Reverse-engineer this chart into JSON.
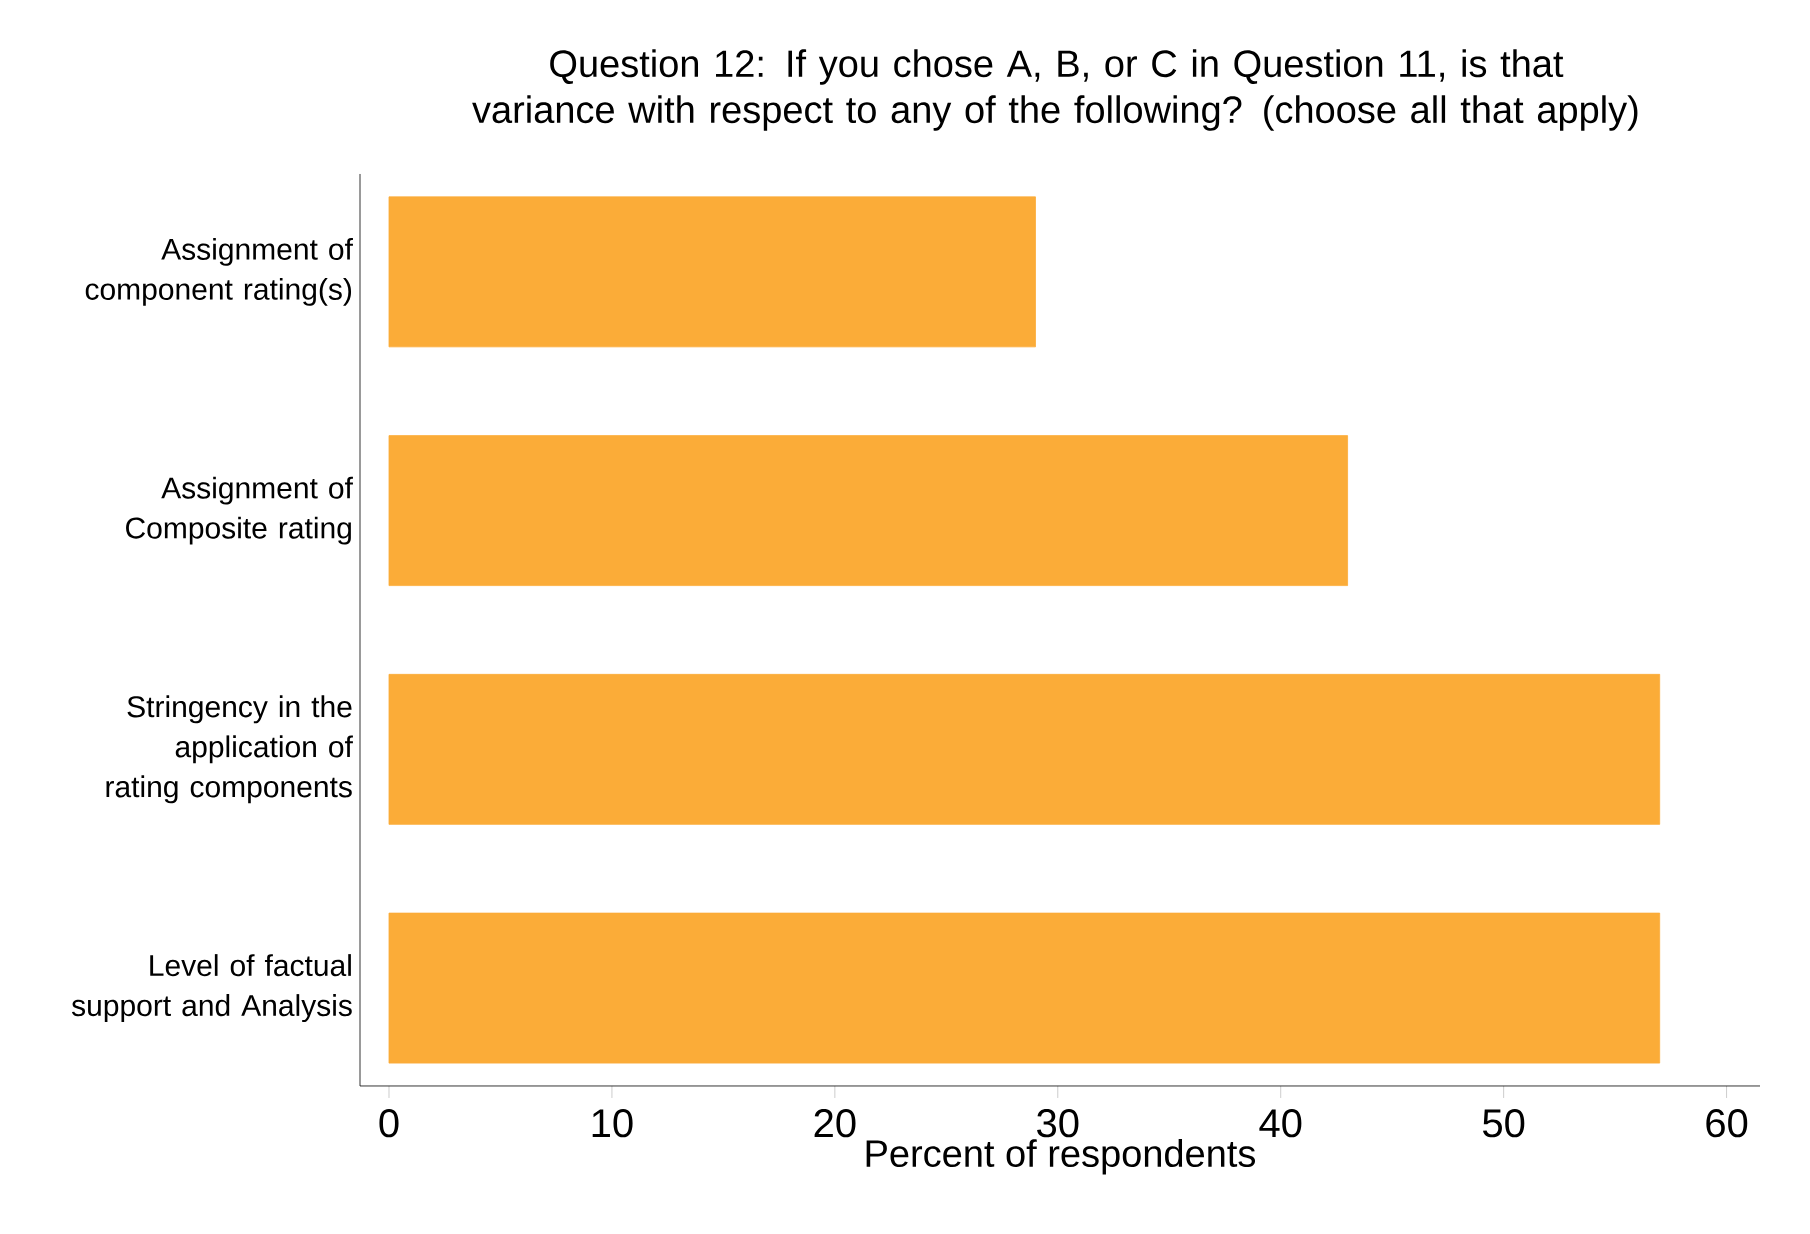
{
  "chart_data": {
    "type": "bar",
    "orientation": "horizontal",
    "title": "Question 12: If you chose A, B, or C in Question 11, is that variance with respect to any of the following? (choose all that apply)",
    "xlabel": "Percent of respondents",
    "categories": [
      "Assignment of component rating(s)",
      "Assignment of Composite rating",
      "Stringency in the application of rating components",
      "Level of factual support and Analysis"
    ],
    "values": [
      29,
      43,
      57,
      57
    ],
    "color": "#fbac38",
    "xlim": [
      -1.3,
      61.5
    ],
    "xticks": [
      0,
      10,
      20,
      30,
      40,
      50,
      60
    ]
  }
}
